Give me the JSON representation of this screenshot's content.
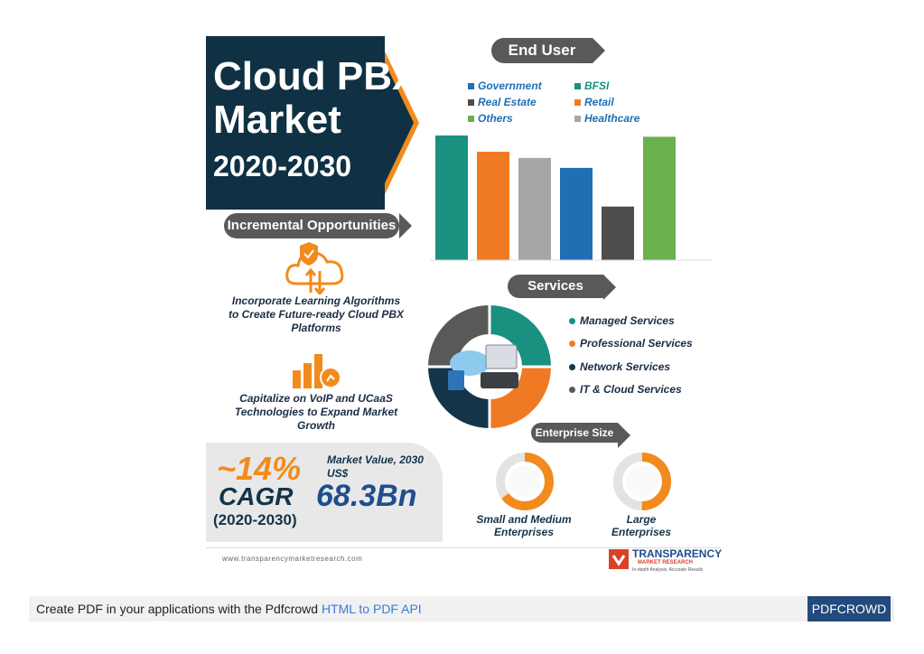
{
  "title": {
    "line1": "Cloud PBX",
    "line2": "Market",
    "line3": "2020-2030"
  },
  "opportunities": {
    "heading": "Incremental Opportunities",
    "item1": "Incorporate Learning Algorithms to Create Future-ready Cloud PBX Platforms",
    "item2": "Capitalize on VoIP and UCaaS Technologies to Expand Market Growth"
  },
  "cagr": {
    "percent": "~14%",
    "label": "CAGR",
    "period": "(2020-2030)",
    "market_value_label": "Market Value, 2030",
    "currency": "US$",
    "value": "68.3Bn"
  },
  "end_user": {
    "heading": "End User",
    "legend": [
      {
        "label": "Government",
        "color": "#1f6fb5"
      },
      {
        "label": "BFSI",
        "color": "#1a9080"
      },
      {
        "label": "Real Estate",
        "color": "#4d4d4d"
      },
      {
        "label": "Retail",
        "color": "#f07a24"
      },
      {
        "label": "Others",
        "color": "#6ab04c"
      },
      {
        "label": "Healthcare",
        "color": "#a6a6a6"
      }
    ]
  },
  "chart_data": {
    "type": "bar",
    "categories": [
      "BFSI",
      "Retail",
      "Healthcare",
      "Government",
      "Real Estate",
      "Others"
    ],
    "values": [
      100,
      87,
      82,
      74,
      43,
      99
    ],
    "colors": [
      "#1a9080",
      "#f07a24",
      "#a6a6a6",
      "#1f6fb5",
      "#4d4d4d",
      "#6ab04c"
    ],
    "title": "",
    "xlabel": "",
    "ylabel": "",
    "ylim": [
      0,
      100
    ],
    "grid": false
  },
  "services": {
    "heading": "Services",
    "items": [
      {
        "label": "Managed Services",
        "color": "#1a9080"
      },
      {
        "label": "Professional Services",
        "color": "#f07a24"
      },
      {
        "label": "Network Services",
        "color": "#14344a"
      },
      {
        "label": "IT & Cloud Services",
        "color": "#595959"
      }
    ]
  },
  "enterprise": {
    "heading": "Enterprise Size",
    "small": "Small and Medium Enterprises",
    "small_line1": "Small and Medium",
    "small_line2": "Enterprises",
    "large_line1": "Large",
    "large_line2": "Enterprises"
  },
  "footer": {
    "url": "www.transparencymarketresearch.com",
    "logo_word": "TRANSPARENCY",
    "logo_sub": "MARKET RESEARCH",
    "logo_tagline": "In-depth Analysis. Accurate Results"
  },
  "pdfcrowd": {
    "text": "Create PDF in your applications with the Pdfcrowd",
    "link": "HTML to PDF API",
    "button": "PDFCROWD"
  }
}
